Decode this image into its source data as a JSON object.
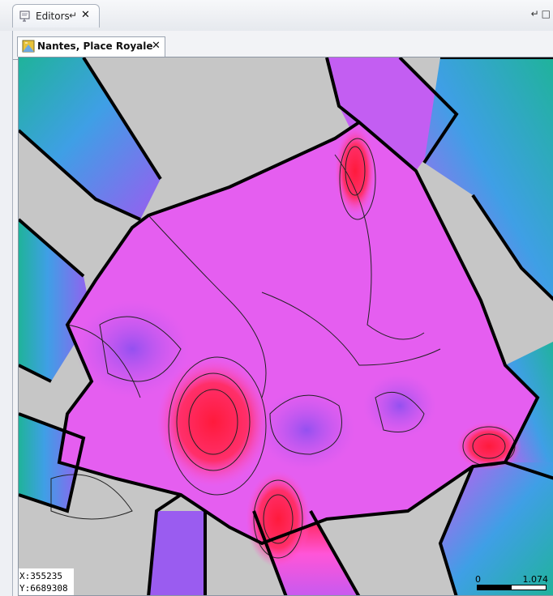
{
  "window": {
    "view_tab": {
      "label": "Editors",
      "pin_icon": "pin-icon",
      "close_icon": "close-icon"
    },
    "view_controls": {
      "minimize_icon": "minimize-icon",
      "maximize_icon": "maximize-icon"
    }
  },
  "editor": {
    "tab": {
      "label": "Nantes, Place Royale",
      "icon": "map-layer-icon",
      "close_icon": "close-icon"
    }
  },
  "map": {
    "coords": {
      "x": "X:355235",
      "y": "Y:6689308"
    },
    "scale": {
      "min_label": "0",
      "max_label": "1.074"
    },
    "colors": {
      "building": "#c6c6c6",
      "boundary": "#000000",
      "low": "#1fb39a",
      "mid_low": "#3f9fe6",
      "mid": "#9a5cf0",
      "high": "#ff55d8",
      "peak": "#ff1a3c"
    }
  }
}
